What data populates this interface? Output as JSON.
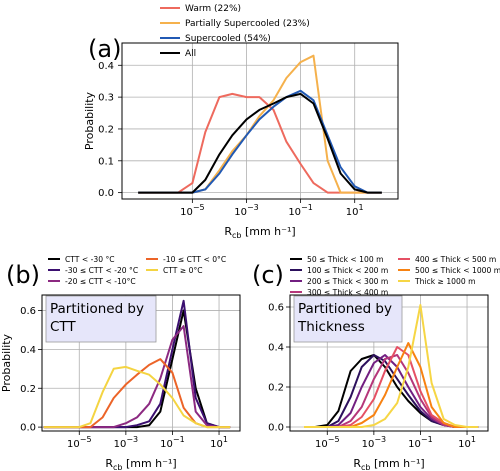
{
  "chart_data": [
    {
      "panel_label": "(a)",
      "type": "line",
      "x": [
        1e-07,
        3e-06,
        1e-05,
        3e-05,
        0.0001,
        0.0003,
        0.001,
        0.003,
        0.01,
        0.03,
        0.1,
        0.3,
        1,
        3,
        10,
        30,
        100
      ],
      "xlim_exp": [
        -7.6,
        2.6
      ],
      "xtick_exps": [
        -5,
        -3,
        -1,
        1
      ],
      "xticklabels": [
        "10⁻⁵",
        "10⁻³",
        "10⁻¹",
        "10¹"
      ],
      "xscale": "log",
      "xlabel_main": "R",
      "xlabel_sub": "cb",
      "xlabel_unit": "[mm h⁻¹]",
      "ylabel": "Probability",
      "ylim": [
        -0.02,
        0.47
      ],
      "yticks": [
        0.0,
        0.1,
        0.2,
        0.3,
        0.4
      ],
      "yticklabels": [
        "0.0",
        "0.1",
        "0.2",
        "0.3",
        "0.4"
      ],
      "grid": true,
      "legend_position": "top-left-outside",
      "series": [
        {
          "name": "Warm (22%)",
          "color": "#ee6a5e",
          "values": [
            0.0,
            0.0,
            0.03,
            0.19,
            0.3,
            0.31,
            0.3,
            0.3,
            0.26,
            0.16,
            0.09,
            0.03,
            0.0,
            0.0,
            0.0,
            0.0,
            0.0
          ]
        },
        {
          "name": "Partially Supercooled (23%)",
          "color": "#f5b14c",
          "values": [
            0.0,
            0.0,
            0.0,
            0.01,
            0.07,
            0.13,
            0.18,
            0.24,
            0.29,
            0.36,
            0.41,
            0.43,
            0.1,
            0.0,
            0.0,
            0.0,
            0.0
          ]
        },
        {
          "name": "Supercooled (54%)",
          "color": "#2159b4",
          "values": [
            0.0,
            0.0,
            0.0,
            0.01,
            0.06,
            0.12,
            0.18,
            0.23,
            0.27,
            0.3,
            0.32,
            0.29,
            0.18,
            0.08,
            0.02,
            0.0,
            0.0
          ]
        },
        {
          "name": "All",
          "color": "#000000",
          "values": [
            0.0,
            0.0,
            0.0,
            0.04,
            0.12,
            0.18,
            0.23,
            0.26,
            0.28,
            0.3,
            0.31,
            0.28,
            0.17,
            0.06,
            0.01,
            0.0,
            0.0
          ]
        }
      ]
    },
    {
      "panel_label": "(b)",
      "box_text": [
        "Partitioned by",
        "CTT"
      ],
      "type": "line",
      "x": [
        3e-07,
        1e-06,
        3e-06,
        1e-05,
        3e-05,
        0.0001,
        0.0003,
        0.001,
        0.003,
        0.01,
        0.03,
        0.1,
        0.3,
        1,
        3,
        10,
        30
      ],
      "xlim_exp": [
        -6.6,
        1.9
      ],
      "xtick_exps": [
        -5,
        -3,
        -1,
        1
      ],
      "xticklabels": [
        "10⁻⁵",
        "10⁻³",
        "10⁻¹",
        "10¹"
      ],
      "xscale": "log",
      "xlabel_main": "R",
      "xlabel_sub": "cb",
      "xlabel_unit": "[mm h⁻¹]",
      "ylabel": "Probability",
      "ylim": [
        -0.02,
        0.68
      ],
      "yticks": [
        0.0,
        0.2,
        0.4,
        0.6
      ],
      "yticklabels": [
        "0.0",
        "0.2",
        "0.4",
        "0.6"
      ],
      "grid": true,
      "legend_position": "top-outside",
      "series": [
        {
          "name": "CTT < -30 °C",
          "color": "#000000",
          "values": [
            0,
            0,
            0,
            0,
            0,
            0,
            0,
            0,
            0,
            0.01,
            0.08,
            0.35,
            0.6,
            0.2,
            0.02,
            0.0,
            0
          ]
        },
        {
          "name": "-30 ≤ CTT < -20 °C",
          "color": "#3b0f70",
          "values": [
            0,
            0,
            0,
            0,
            0,
            0,
            0,
            0,
            0.01,
            0.03,
            0.12,
            0.4,
            0.65,
            0.15,
            0.02,
            0.0,
            0
          ]
        },
        {
          "name": "-20 ≤ CTT < -10°C",
          "color": "#8c2981",
          "values": [
            0,
            0,
            0,
            0,
            0,
            0,
            0,
            0.02,
            0.05,
            0.12,
            0.25,
            0.45,
            0.52,
            0.08,
            0.01,
            0.0,
            0
          ]
        },
        {
          "name": "-10 ≤ CTT < 0°C",
          "color": "#ec6428",
          "values": [
            0,
            0,
            0,
            0,
            0,
            0.05,
            0.15,
            0.22,
            0.27,
            0.32,
            0.35,
            0.28,
            0.1,
            0.02,
            0,
            0,
            0
          ]
        },
        {
          "name": "CTT ≥ 0°C",
          "color": "#f4d442",
          "values": [
            0,
            0,
            0,
            0,
            0.02,
            0.18,
            0.3,
            0.31,
            0.29,
            0.27,
            0.22,
            0.15,
            0.06,
            0.02,
            0.0,
            0,
            0
          ]
        }
      ]
    },
    {
      "panel_label": "(c)",
      "box_text": [
        "Partitioned by",
        "Thickness"
      ],
      "type": "line",
      "x": [
        1e-06,
        3e-06,
        1e-05,
        3e-05,
        0.0001,
        0.0003,
        0.001,
        0.003,
        0.01,
        0.03,
        0.1,
        0.3,
        1,
        3,
        10,
        30
      ],
      "xlim_exp": [
        -6.6,
        1.9
      ],
      "xtick_exps": [
        -5,
        -3,
        -1,
        1
      ],
      "xticklabels": [
        "10⁻⁵",
        "10⁻³",
        "10⁻¹",
        "10¹"
      ],
      "xscale": "log",
      "xlabel_main": "R",
      "xlabel_sub": "cb",
      "xlabel_unit": "[mm h⁻¹]",
      "ylim": [
        -0.02,
        0.66
      ],
      "yticks": [
        0.0,
        0.2,
        0.4,
        0.6
      ],
      "yticklabels": [
        "0.0",
        "0.2",
        "0.4",
        "0.6"
      ],
      "grid": true,
      "legend_position": "top-outside",
      "series": [
        {
          "name": "50 ≤ Thick < 100 m",
          "color": "#000000",
          "values": [
            0,
            0,
            0.01,
            0.08,
            0.28,
            0.34,
            0.36,
            0.3,
            0.2,
            0.13,
            0.07,
            0.03,
            0.01,
            0,
            0,
            0
          ]
        },
        {
          "name": "100 ≤ Thick < 200 m",
          "color": "#2c105c",
          "values": [
            0,
            0,
            0,
            0.03,
            0.15,
            0.3,
            0.36,
            0.33,
            0.24,
            0.16,
            0.08,
            0.03,
            0.01,
            0,
            0,
            0
          ]
        },
        {
          "name": "200 ≤ Thick < 300 m",
          "color": "#721f81",
          "values": [
            0,
            0,
            0,
            0.01,
            0.07,
            0.2,
            0.32,
            0.36,
            0.3,
            0.2,
            0.1,
            0.04,
            0.01,
            0,
            0,
            0
          ]
        },
        {
          "name": "300 ≤ Thick < 400 m",
          "color": "#b5367a",
          "values": [
            0,
            0,
            0,
            0,
            0.03,
            0.1,
            0.24,
            0.34,
            0.36,
            0.27,
            0.14,
            0.05,
            0.01,
            0,
            0,
            0
          ]
        },
        {
          "name": "400 ≤ Thick < 500 m",
          "color": "#e55064",
          "values": [
            0,
            0,
            0,
            0,
            0.01,
            0.05,
            0.14,
            0.28,
            0.4,
            0.36,
            0.18,
            0.06,
            0.02,
            0,
            0,
            0
          ]
        },
        {
          "name": "500 ≤ Thick < 1000 m",
          "color": "#f78212",
          "values": [
            0,
            0,
            0,
            0,
            0,
            0.02,
            0.06,
            0.16,
            0.3,
            0.42,
            0.3,
            0.1,
            0.02,
            0,
            0,
            0
          ]
        },
        {
          "name": "Thick ≥ 1000 m",
          "color": "#f6d645",
          "values": [
            0,
            0,
            0,
            0,
            0,
            0,
            0.01,
            0.04,
            0.12,
            0.3,
            0.61,
            0.22,
            0.04,
            0.01,
            0,
            0
          ]
        }
      ]
    }
  ]
}
